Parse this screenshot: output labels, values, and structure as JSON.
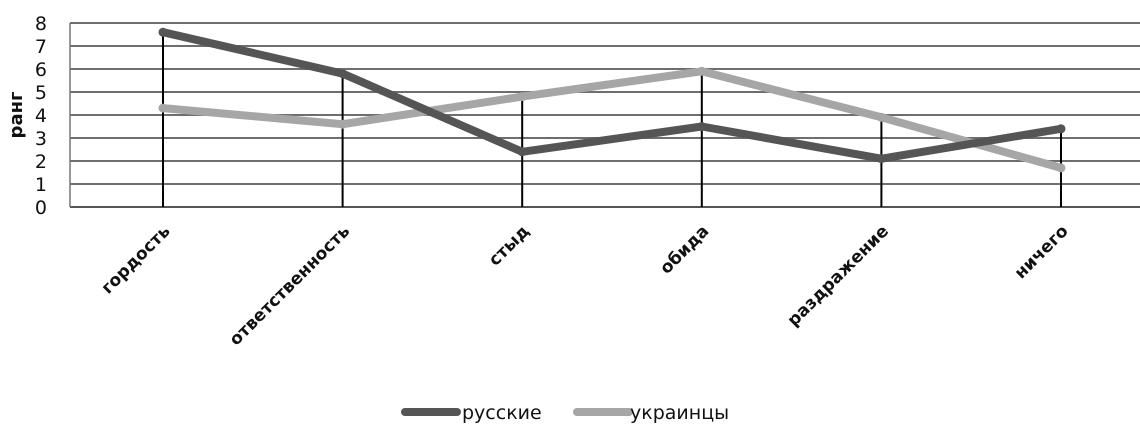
{
  "chart_data": {
    "type": "line",
    "title": "",
    "xlabel": "",
    "ylabel": "ранг",
    "ylim": [
      0,
      8
    ],
    "yticks": [
      0,
      1,
      2,
      3,
      4,
      5,
      6,
      7,
      8
    ],
    "grid": true,
    "legend_position": "bottom",
    "categories": [
      "гордость",
      "ответственность",
      "стыд",
      "обида",
      "раздражение",
      "ничего"
    ],
    "series": [
      {
        "name": "русские",
        "color": "#555555",
        "values": [
          7.6,
          5.8,
          2.4,
          3.5,
          2.1,
          3.4
        ]
      },
      {
        "name": "украинцы",
        "color": "#a6a6a6",
        "values": [
          4.3,
          3.6,
          4.8,
          5.9,
          3.9,
          1.7
        ]
      }
    ]
  }
}
